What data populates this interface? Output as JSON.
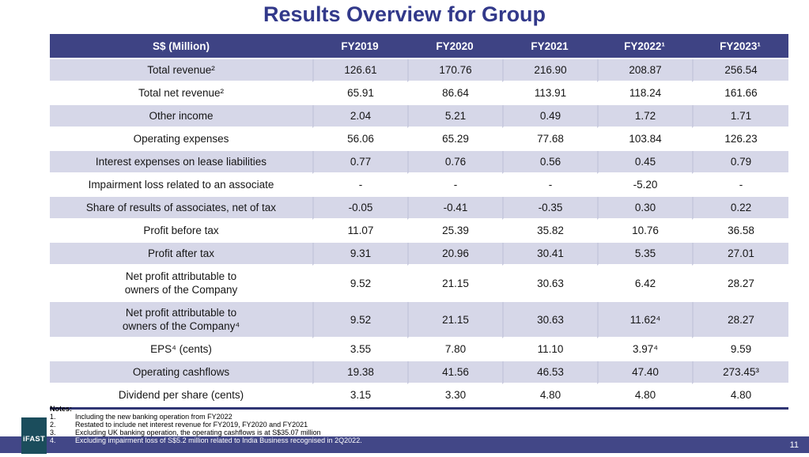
{
  "slide": {
    "title": "Results Overview for Group",
    "page_number": "11"
  },
  "table": {
    "header": [
      "S$ (Million)",
      "FY2019",
      "FY2020",
      "FY2021",
      "FY2022¹",
      "FY2023¹"
    ],
    "rows": [
      [
        "Total revenue²",
        "126.61",
        "170.76",
        "216.90",
        "208.87",
        "256.54"
      ],
      [
        "Total net revenue²",
        "65.91",
        "86.64",
        "113.91",
        "118.24",
        "161.66"
      ],
      [
        "Other income",
        "2.04",
        "5.21",
        "0.49",
        "1.72",
        "1.71"
      ],
      [
        "Operating expenses",
        "56.06",
        "65.29",
        "77.68",
        "103.84",
        "126.23"
      ],
      [
        "Interest expenses on lease liabilities",
        "0.77",
        "0.76",
        "0.56",
        "0.45",
        "0.79"
      ],
      [
        "Impairment loss related to an associate",
        "-",
        "-",
        "-",
        "-5.20",
        "-"
      ],
      [
        "Share of results of associates, net of tax",
        "-0.05",
        "-0.41",
        "-0.35",
        "0.30",
        "0.22"
      ],
      [
        "Profit before tax",
        "11.07",
        "25.39",
        "35.82",
        "10.76",
        "36.58"
      ],
      [
        "Profit after tax",
        "9.31",
        "20.96",
        "30.41",
        "5.35",
        "27.01"
      ],
      [
        "Net profit attributable to\nowners of the Company",
        "9.52",
        "21.15",
        "30.63",
        "6.42",
        "28.27"
      ],
      [
        "Net profit attributable to\nowners of the Company⁴",
        "9.52",
        "21.15",
        "30.63",
        "11.62⁴",
        "28.27"
      ],
      [
        "EPS⁴ (cents)",
        "3.55",
        "7.80",
        "11.10",
        "3.97⁴",
        "9.59"
      ],
      [
        "Operating cashflows",
        "19.38",
        "41.56",
        "46.53",
        "47.40",
        "273.45³"
      ],
      [
        "Dividend per share (cents)",
        "3.15",
        "3.30",
        "4.80",
        "4.80",
        "4.80"
      ]
    ]
  },
  "notes": {
    "label": "Notes:",
    "items": [
      {
        "num": "1.",
        "text": "Including the new banking operation from FY2022"
      },
      {
        "num": "2.",
        "text": "Restated to include net interest revenue for FY2019, FY2020 and FY2021"
      },
      {
        "num": "3.",
        "text": "Excluding UK banking operation, the operating cashflows is at S$35.07 million"
      },
      {
        "num": "4.",
        "text": "Excluding impairment loss of S$5.2 million related to India Business recognised in 2Q2022."
      }
    ]
  },
  "logo": {
    "text": "iFAST"
  },
  "colors": {
    "title": "#32398A",
    "header_bg": "#3E4384",
    "row_alt_bg": "#D6D7E8",
    "divider": "#C9CBDF",
    "table_underline": "#2F3574",
    "footer_bar": "#424787",
    "logo_bg": "#1B4D5C"
  }
}
